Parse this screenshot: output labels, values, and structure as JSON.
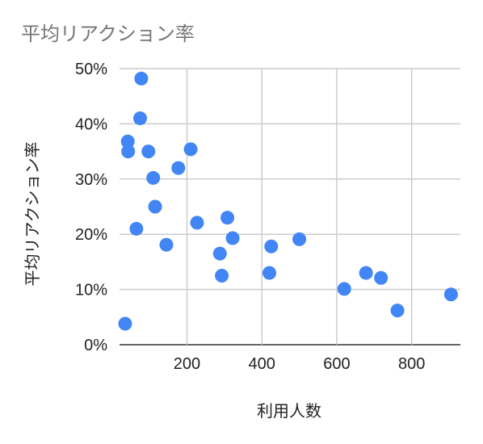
{
  "chart_data": {
    "type": "scatter",
    "title": "平均リアクション率",
    "xlabel": "利用人数",
    "ylabel": "平均リアクション率",
    "xlim": [
      20,
      930
    ],
    "ylim": [
      0,
      50
    ],
    "x_ticks": [
      200,
      400,
      600,
      800
    ],
    "x_tick_labels": [
      "200",
      "400",
      "600",
      "800"
    ],
    "y_ticks": [
      0,
      10,
      20,
      30,
      40,
      50
    ],
    "y_tick_labels": [
      "0%",
      "10%",
      "20%",
      "30%",
      "40%",
      "50%"
    ],
    "grid": true,
    "legend": "none",
    "marker_color": "#4285f4",
    "points": [
      {
        "x": 78,
        "y": 48.2
      },
      {
        "x": 75,
        "y": 41.0
      },
      {
        "x": 42,
        "y": 36.8
      },
      {
        "x": 43,
        "y": 35.0
      },
      {
        "x": 97,
        "y": 35.0
      },
      {
        "x": 210,
        "y": 35.4
      },
      {
        "x": 177,
        "y": 32.0
      },
      {
        "x": 110,
        "y": 30.2
      },
      {
        "x": 115,
        "y": 25.0
      },
      {
        "x": 227,
        "y": 22.1
      },
      {
        "x": 308,
        "y": 23.0
      },
      {
        "x": 65,
        "y": 21.0
      },
      {
        "x": 145,
        "y": 18.1
      },
      {
        "x": 322,
        "y": 19.3
      },
      {
        "x": 425,
        "y": 17.8
      },
      {
        "x": 500,
        "y": 19.1
      },
      {
        "x": 288,
        "y": 16.5
      },
      {
        "x": 293,
        "y": 12.5
      },
      {
        "x": 420,
        "y": 13.0
      },
      {
        "x": 620,
        "y": 10.1
      },
      {
        "x": 678,
        "y": 13.0
      },
      {
        "x": 718,
        "y": 12.1
      },
      {
        "x": 762,
        "y": 6.2
      },
      {
        "x": 905,
        "y": 9.1
      },
      {
        "x": 35,
        "y": 3.8
      }
    ]
  }
}
